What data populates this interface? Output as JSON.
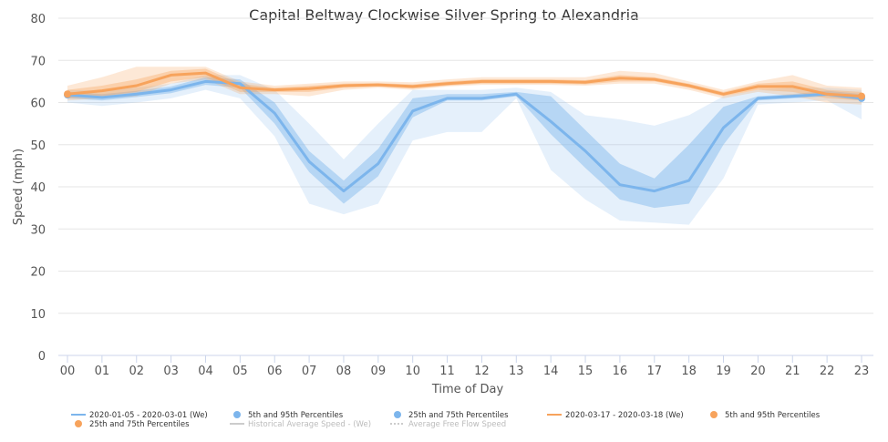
{
  "chart_data": {
    "type": "line",
    "title": "Capital Beltway Clockwise Silver Spring to Alexandria",
    "xlabel": "Time of Day",
    "ylabel": "Speed (mph)",
    "ylim": [
      0,
      80
    ],
    "yticks": [
      "0",
      "10",
      "20",
      "30",
      "40",
      "50",
      "60",
      "70",
      "80"
    ],
    "categories": [
      "00",
      "01",
      "02",
      "03",
      "04",
      "05",
      "06",
      "07",
      "08",
      "09",
      "10",
      "11",
      "12",
      "13",
      "14",
      "15",
      "16",
      "17",
      "18",
      "19",
      "20",
      "21",
      "22",
      "23"
    ],
    "grid": true,
    "legend_position": "bottom",
    "series": [
      {
        "name": "2020-01-05 - 2020-03-01 (We)",
        "color": "#7cb5ec",
        "values": [
          61.8,
          61.2,
          62.0,
          63.0,
          65.0,
          64.5,
          57.5,
          46.0,
          39.0,
          45.5,
          58.0,
          61.0,
          61.0,
          62.0,
          55.5,
          48.5,
          40.5,
          39.0,
          41.5,
          54.0,
          61.0,
          61.5,
          62.0,
          61.0
        ],
        "p25": [
          61.0,
          60.5,
          61.3,
          62.2,
          64.2,
          63.5,
          55.0,
          43.5,
          36.0,
          42.5,
          56.5,
          60.5,
          60.5,
          61.5,
          52.5,
          44.5,
          37.0,
          35.0,
          36.0,
          50.0,
          60.5,
          61.0,
          61.5,
          60.5
        ],
        "p75": [
          62.5,
          62.0,
          62.8,
          63.8,
          66.0,
          65.5,
          60.0,
          48.5,
          41.5,
          49.0,
          61.0,
          62.0,
          62.0,
          62.5,
          61.5,
          53.5,
          45.5,
          42.0,
          50.0,
          59.0,
          61.5,
          62.0,
          62.8,
          62.0
        ],
        "p05": [
          60.0,
          59.2,
          60.0,
          61.0,
          63.0,
          61.0,
          52.0,
          36.0,
          33.5,
          36.0,
          51.0,
          53.0,
          53.0,
          61.0,
          44.0,
          37.0,
          32.0,
          31.5,
          31.0,
          42.0,
          59.5,
          60.0,
          60.5,
          56.0
        ],
        "p95": [
          63.0,
          62.8,
          63.5,
          64.5,
          66.5,
          66.5,
          63.0,
          55.0,
          46.5,
          55.0,
          63.0,
          63.0,
          63.0,
          63.5,
          62.5,
          57.0,
          56.0,
          54.5,
          57.0,
          61.5,
          63.0,
          63.5,
          63.5,
          63.0
        ]
      },
      {
        "name": "2020-03-17 - 2020-03-18 (We)",
        "color": "#f7a35c",
        "values": [
          62.0,
          62.8,
          64.0,
          66.5,
          67.0,
          63.5,
          63.0,
          63.3,
          64.0,
          64.2,
          63.8,
          64.5,
          65.0,
          65.0,
          65.0,
          64.8,
          65.8,
          65.5,
          64.0,
          62.0,
          63.8,
          63.8,
          62.0,
          61.5
        ],
        "p25": [
          61.0,
          61.5,
          62.5,
          65.0,
          66.0,
          62.5,
          62.5,
          62.5,
          63.5,
          63.8,
          63.3,
          64.0,
          64.5,
          64.5,
          64.5,
          64.3,
          65.0,
          65.0,
          63.5,
          61.5,
          63.0,
          62.5,
          61.0,
          60.5
        ],
        "p75": [
          63.0,
          64.0,
          65.5,
          67.5,
          68.0,
          64.5,
          63.5,
          64.0,
          64.5,
          64.6,
          64.3,
          65.0,
          65.5,
          65.5,
          65.5,
          65.3,
          66.5,
          66.0,
          64.5,
          62.5,
          64.5,
          65.0,
          63.0,
          62.5
        ],
        "p05": [
          60.5,
          61.0,
          61.5,
          64.5,
          65.5,
          62.0,
          62.0,
          61.5,
          63.0,
          63.5,
          63.0,
          63.8,
          64.2,
          64.2,
          64.2,
          64.0,
          64.5,
          64.5,
          63.0,
          61.0,
          62.5,
          61.5,
          60.0,
          59.5
        ],
        "p95": [
          64.0,
          66.0,
          68.5,
          68.5,
          68.5,
          65.0,
          64.0,
          64.5,
          65.0,
          65.0,
          64.8,
          65.5,
          66.0,
          66.0,
          66.0,
          66.0,
          67.5,
          67.0,
          65.0,
          63.0,
          65.0,
          66.5,
          64.0,
          63.5
        ]
      }
    ],
    "legend": [
      {
        "label": "2020-01-05 - 2020-03-01 (We)",
        "symbol": "line",
        "color": "#7cb5ec"
      },
      {
        "label": "5th and 95th Percentiles",
        "symbol": "dot",
        "color": "#7cb5ec"
      },
      {
        "label": "25th and 75th Percentiles",
        "symbol": "dot",
        "color": "#7cb5ec"
      },
      {
        "label": "2020-03-17 - 2020-03-18 (We)",
        "symbol": "line",
        "color": "#f7a35c"
      },
      {
        "label": "5th and 95th Percentiles",
        "symbol": "dot",
        "color": "#f7a35c"
      },
      {
        "label": "25th and 75th Percentiles",
        "symbol": "dot",
        "color": "#f7a35c"
      },
      {
        "label": "Historical Average Speed - (We)",
        "symbol": "line",
        "color": "#cccccc",
        "muted": true
      },
      {
        "label": "Average Free Flow Speed",
        "symbol": "dotted",
        "color": "#cccccc",
        "muted": true
      }
    ]
  }
}
